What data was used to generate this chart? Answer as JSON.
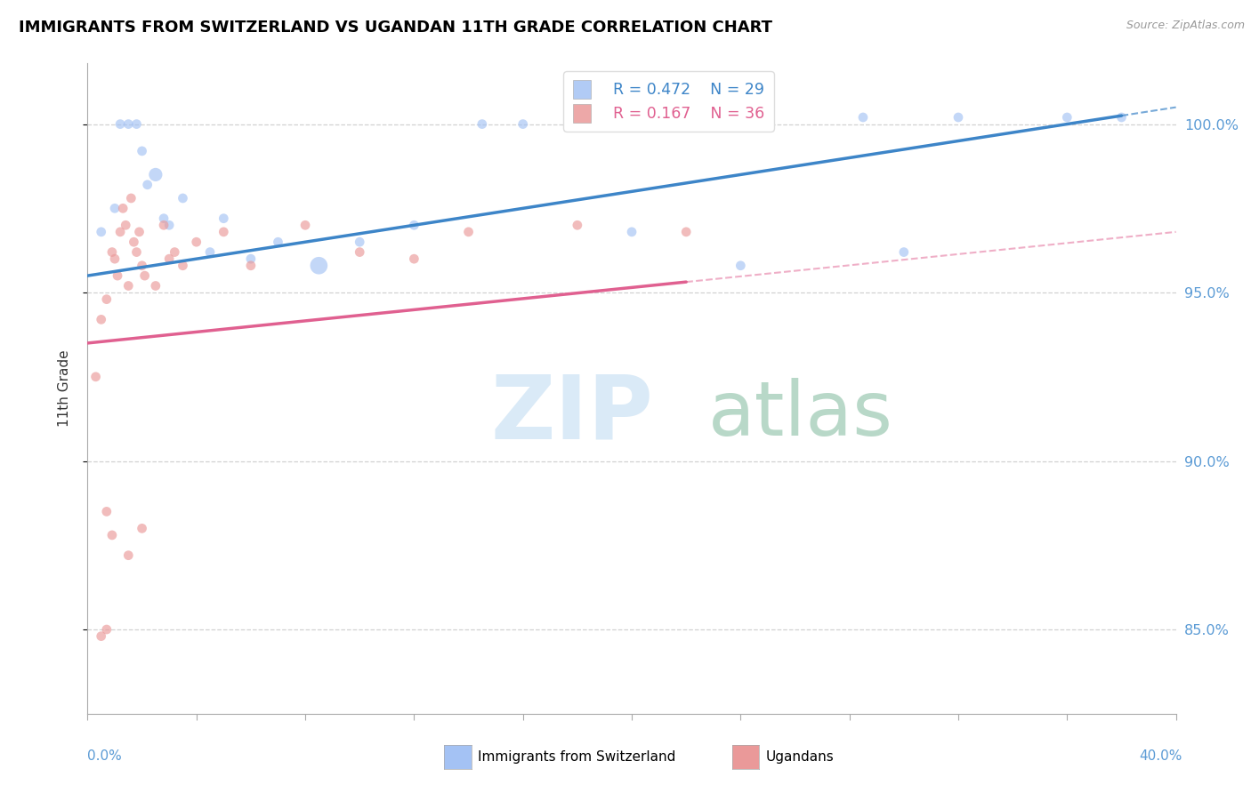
{
  "title": "IMMIGRANTS FROM SWITZERLAND VS UGANDAN 11TH GRADE CORRELATION CHART",
  "source": "Source: ZipAtlas.com",
  "ylabel": "11th Grade",
  "xlim": [
    0.0,
    40.0
  ],
  "ylim": [
    82.5,
    101.8
  ],
  "legend_blue_r": "R = 0.472",
  "legend_blue_n": "N = 29",
  "legend_pink_r": "R = 0.167",
  "legend_pink_n": "N = 36",
  "blue_color": "#a4c2f4",
  "pink_color": "#ea9999",
  "trendline_blue_color": "#3d85c8",
  "trendline_pink_color": "#e06090",
  "dashed_color": "#cccccc",
  "yticks": [
    85.0,
    90.0,
    95.0,
    100.0
  ],
  "ytick_labels": [
    "85.0%",
    "90.0%",
    "95.0%",
    "100.0%"
  ],
  "xtick_positions": [
    0,
    4,
    8,
    12,
    16,
    20,
    24,
    28,
    32,
    36,
    40
  ],
  "blue_trend_x0": 0.0,
  "blue_trend_y0": 95.5,
  "blue_trend_x1": 40.0,
  "blue_trend_y1": 100.5,
  "blue_trend_solid_end": 38.0,
  "pink_trend_x0": 0.0,
  "pink_trend_y0": 93.5,
  "pink_trend_x1": 40.0,
  "pink_trend_y1": 96.8,
  "pink_trend_solid_end": 22.0,
  "blue_points_x": [
    0.5,
    1.0,
    1.2,
    1.5,
    1.8,
    2.0,
    2.2,
    2.5,
    2.8,
    3.0,
    3.5,
    4.5,
    5.0,
    6.0,
    7.0,
    8.5,
    10.0,
    12.0,
    14.5,
    16.0,
    18.0,
    20.0,
    22.0,
    24.0,
    28.5,
    30.0,
    32.0,
    36.0,
    38.0
  ],
  "blue_points_y": [
    96.8,
    97.5,
    100.0,
    100.0,
    100.0,
    99.2,
    98.2,
    98.5,
    97.2,
    97.0,
    97.8,
    96.2,
    97.2,
    96.0,
    96.5,
    95.8,
    96.5,
    97.0,
    100.0,
    100.0,
    100.2,
    96.8,
    100.0,
    95.8,
    100.2,
    96.2,
    100.2,
    100.2,
    100.2
  ],
  "blue_sizes": [
    60,
    60,
    60,
    60,
    60,
    60,
    60,
    120,
    60,
    60,
    60,
    60,
    60,
    60,
    60,
    200,
    60,
    60,
    60,
    60,
    60,
    60,
    60,
    60,
    60,
    60,
    60,
    60,
    60
  ],
  "pink_points_x": [
    0.3,
    0.5,
    0.7,
    0.9,
    1.0,
    1.1,
    1.2,
    1.3,
    1.4,
    1.5,
    1.6,
    1.7,
    1.8,
    1.9,
    2.0,
    2.1,
    2.5,
    2.8,
    3.0,
    3.2,
    3.5,
    4.0,
    5.0,
    6.0,
    8.0,
    10.0,
    12.0,
    14.0,
    18.0,
    22.0,
    0.7,
    0.9,
    0.5,
    0.7,
    1.5,
    2.0
  ],
  "pink_points_y": [
    92.5,
    94.2,
    94.8,
    96.2,
    96.0,
    95.5,
    96.8,
    97.5,
    97.0,
    95.2,
    97.8,
    96.5,
    96.2,
    96.8,
    95.8,
    95.5,
    95.2,
    97.0,
    96.0,
    96.2,
    95.8,
    96.5,
    96.8,
    95.8,
    97.0,
    96.2,
    96.0,
    96.8,
    97.0,
    96.8,
    88.5,
    87.8,
    84.8,
    85.0,
    87.2,
    88.0
  ],
  "pink_sizes": [
    60,
    60,
    60,
    60,
    60,
    60,
    60,
    60,
    60,
    60,
    60,
    60,
    60,
    60,
    60,
    60,
    60,
    60,
    60,
    60,
    60,
    60,
    60,
    60,
    60,
    60,
    60,
    60,
    60,
    60,
    60,
    60,
    60,
    60,
    60,
    60
  ]
}
